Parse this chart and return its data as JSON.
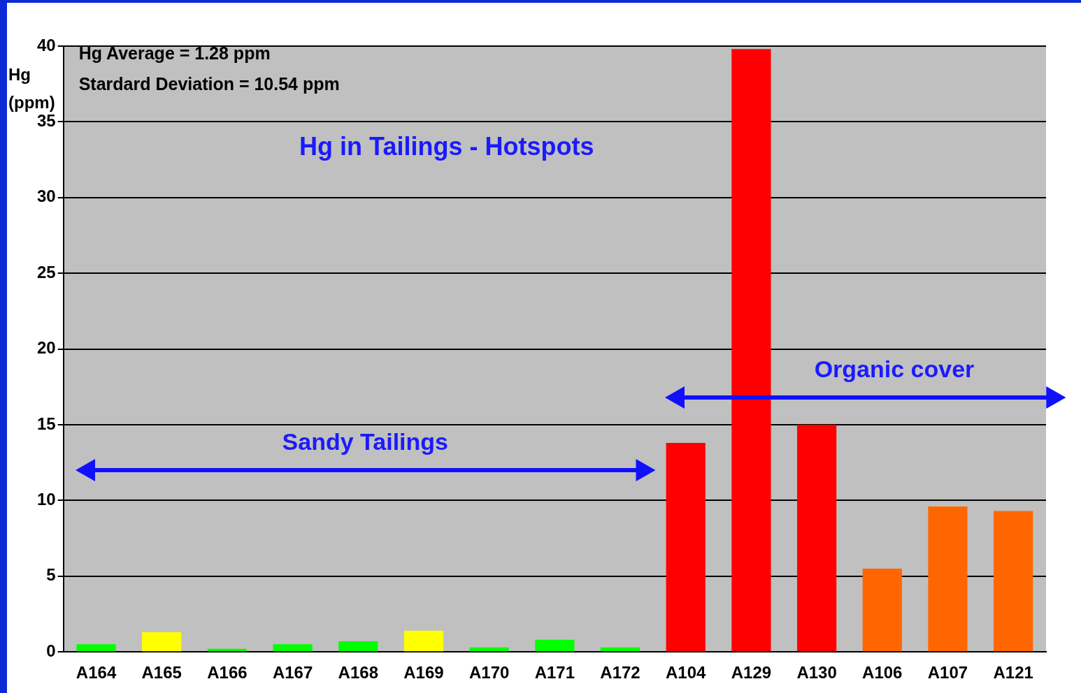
{
  "chart_data": {
    "type": "bar",
    "title": "Hg in Tailings - Hotspots",
    "ylabel": "Hg (ppm)",
    "categories": [
      "A164",
      "A165",
      "A166",
      "A167",
      "A168",
      "A169",
      "A170",
      "A171",
      "A172",
      "A104",
      "A129",
      "A130",
      "A106",
      "A107",
      "A121"
    ],
    "values": [
      0.5,
      1.3,
      0.2,
      0.5,
      0.7,
      1.4,
      0.3,
      0.8,
      0.3,
      13.8,
      39.8,
      15,
      5.5,
      9.6,
      9.3
    ],
    "colors": [
      "#00ff00",
      "#ffff00",
      "#00ff00",
      "#00ff00",
      "#00ff00",
      "#ffff00",
      "#00ff00",
      "#00ff00",
      "#00ff00",
      "#ff0000",
      "#ff0000",
      "#ff0000",
      "#ff6600",
      "#ff6600",
      "#ff6600"
    ],
    "ylim": [
      0,
      40
    ],
    "yticks": [
      0,
      5,
      10,
      15,
      20,
      25,
      30,
      35,
      40
    ],
    "grid": "y",
    "legend": false,
    "annotations": [
      "Hg Average = 1.28 ppm",
      "Stardard Deviation = 10.54 ppm",
      "Sandy Tailings",
      "Organic cover"
    ]
  }
}
